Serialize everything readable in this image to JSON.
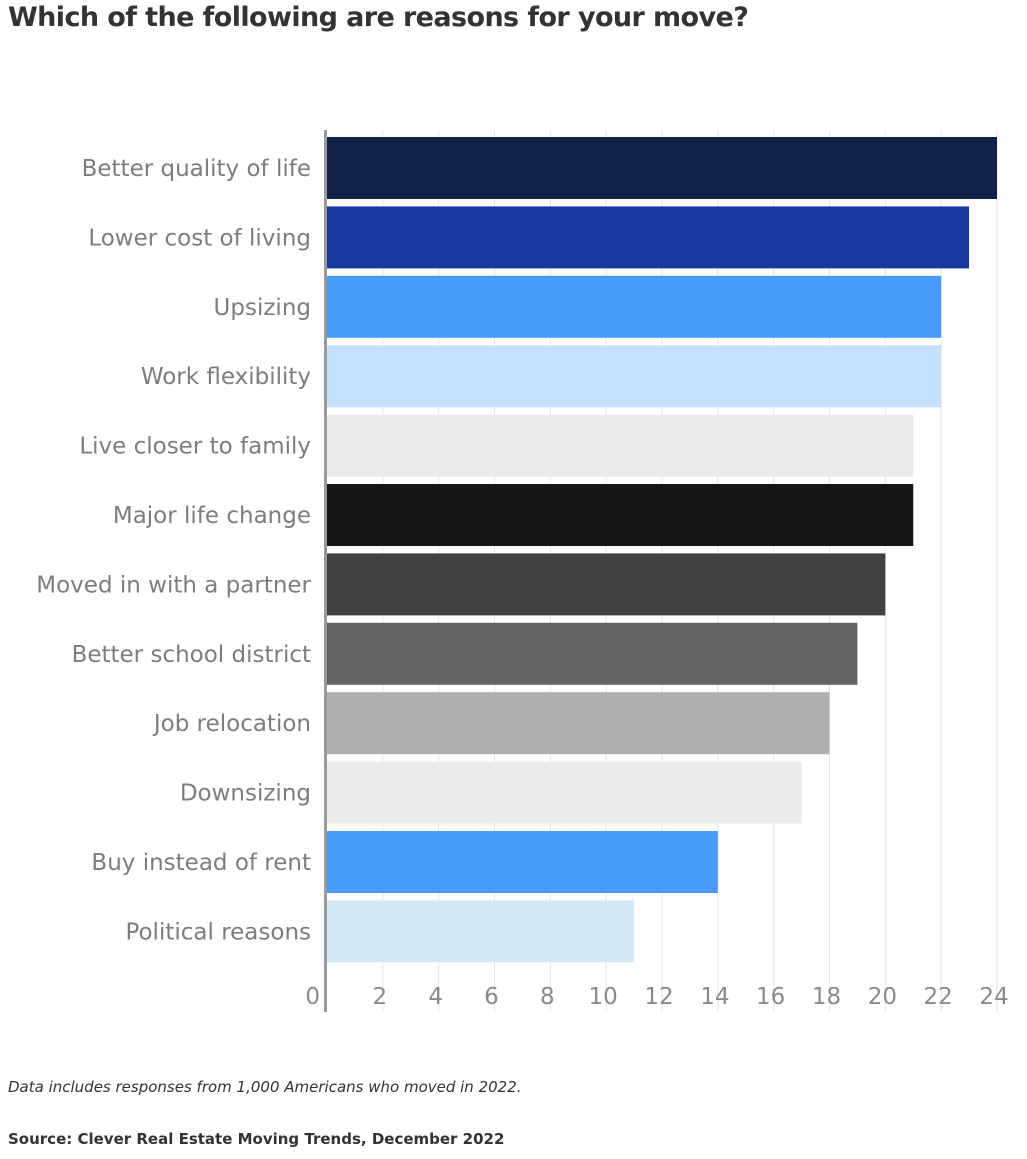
{
  "chart_data": {
    "type": "bar",
    "orientation": "horizontal",
    "title": "Which of the following are reasons for your move?",
    "note": "Data includes responses from 1,000 Americans who moved in 2022.",
    "source": "Source: Clever Real Estate Moving Trends, December 2022",
    "xlabel": "",
    "ylabel": "",
    "xlim": [
      0,
      24
    ],
    "x_ticks": [
      "0",
      "2",
      "4",
      "6",
      "8",
      "10",
      "12",
      "14",
      "16",
      "18",
      "20",
      "22",
      "24"
    ],
    "grid": "vertical",
    "categories": [
      "Better quality of life",
      "Lower cost of living",
      "Upsizing",
      "Work flexibility",
      "Live closer to family",
      "Major life change",
      "Moved in with a partner",
      "Better school district",
      "Job relocation",
      "Downsizing",
      "Buy instead of rent",
      "Political reasons"
    ],
    "values": [
      24,
      23,
      22,
      22,
      21,
      21,
      20,
      19,
      18,
      17,
      14,
      11
    ],
    "colors": [
      "#12234a",
      "#1837a0",
      "#489bf9",
      "#c5e0fc",
      "#eaeaea",
      "#161616",
      "#414141",
      "#636363",
      "#afafaf",
      "#eaeaea",
      "#489bf9",
      "#d4e7f5"
    ]
  }
}
